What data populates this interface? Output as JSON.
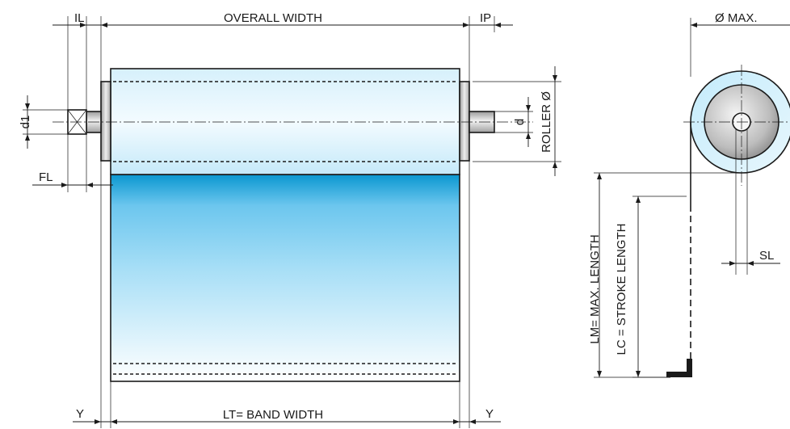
{
  "labels": {
    "il": "IL",
    "overall_width": "OVERALL WIDTH",
    "ip": "IP",
    "diameter_max": "Ø MAX.",
    "d1": "d1",
    "roller_diameter": "ROLLER Ø",
    "d": "d",
    "fl": "FL",
    "sl": "SL",
    "lm": "LM= MAX. LENGTH",
    "lc": "LC = STROKE LENGTH",
    "y_left": "Y",
    "y_right": "Y",
    "lt": "LT= BAND WIDTH"
  },
  "colors": {
    "roller_light": "#eef9fe",
    "roller_mid": "#bfe8f8",
    "band_top": "#0a97d0",
    "band_mid": "#8ad3f3",
    "band_bottom": "#ffffff",
    "cap": "#c8c8c8"
  }
}
